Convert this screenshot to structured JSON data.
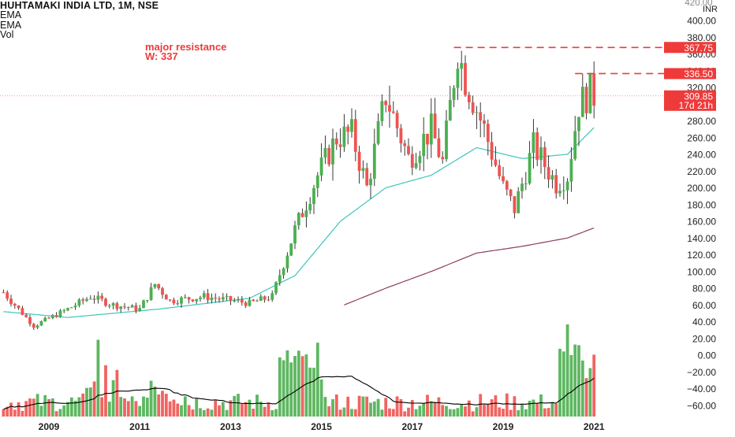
{
  "header": {
    "title": "HUHTAMAKI INDIA LTD, 1M, NSE",
    "indicators": [
      "EMA",
      "EMA",
      "Vol"
    ]
  },
  "annotation": {
    "line1": "major resistance",
    "line2": "W: 337"
  },
  "price_axis": {
    "unit": "INR",
    "top_partial_label": "420.00",
    "labels": [
      "400.00",
      "380.00",
      "360.00",
      "340.00",
      "320.00",
      "300.00",
      "280.00",
      "260.00",
      "240.00",
      "220.00",
      "200.00",
      "180.00",
      "160.00",
      "140.00",
      "120.00",
      "100.00",
      "80.00",
      "60.00",
      "40.00",
      "20.00",
      "0.00",
      "−20.00",
      "−40.00",
      "−60.00"
    ],
    "price_tags": [
      {
        "value": 367.75,
        "label": "367.75",
        "color": "#ef3a3a"
      },
      {
        "value": 336.5,
        "label": "336.50",
        "color": "#ef3a3a"
      },
      {
        "value": 309.85,
        "label": "309.85",
        "color": "#ef3a3a"
      }
    ],
    "countdown": "17d 21h"
  },
  "time_axis": {
    "labels": [
      "2009",
      "2011",
      "2013",
      "2015",
      "2017",
      "2019",
      "2021"
    ]
  },
  "colors": {
    "up": "#4caf50",
    "down": "#ef5350",
    "ema_fast": "#3cc6b8",
    "ema_slow": "#8b3a62",
    "vol_ma": "#000000",
    "resistance": "#ef3a3a",
    "axis_text": "#222222"
  },
  "chart_data": {
    "type": "candlestick",
    "title": "HUHTAMAKI INDIA LTD, 1M, NSE",
    "interval": "1M",
    "x_range": [
      "2008-01",
      "2021-01"
    ],
    "y_range": [
      -60,
      420
    ],
    "resistance_levels": [
      367.75,
      336.5
    ],
    "last_price": 309.85,
    "ohlc_anchors": [
      {
        "date": "2008-01",
        "close": 75
      },
      {
        "date": "2008-09",
        "close": 35
      },
      {
        "date": "2009-06",
        "close": 55
      },
      {
        "date": "2009-12",
        "close": 70
      },
      {
        "date": "2010-06",
        "close": 60
      },
      {
        "date": "2011-01",
        "close": 55
      },
      {
        "date": "2011-05",
        "close": 85
      },
      {
        "date": "2011-09",
        "close": 65
      },
      {
        "date": "2012-06",
        "close": 70
      },
      {
        "date": "2013-06",
        "close": 62
      },
      {
        "date": "2013-12",
        "close": 70
      },
      {
        "date": "2014-06",
        "close": 150
      },
      {
        "date": "2014-12",
        "close": 215
      },
      {
        "date": "2015-05",
        "close": 260
      },
      {
        "date": "2015-09",
        "close": 265
      },
      {
        "date": "2016-01",
        "close": 200
      },
      {
        "date": "2016-06",
        "close": 310
      },
      {
        "date": "2016-12",
        "close": 235
      },
      {
        "date": "2017-06",
        "close": 270
      },
      {
        "date": "2017-09",
        "close": 230
      },
      {
        "date": "2018-01",
        "close": 365
      },
      {
        "date": "2018-03",
        "close": 330
      },
      {
        "date": "2018-08",
        "close": 270
      },
      {
        "date": "2019-01",
        "close": 200
      },
      {
        "date": "2019-04",
        "close": 175
      },
      {
        "date": "2019-09",
        "close": 250
      },
      {
        "date": "2020-03",
        "close": 205
      },
      {
        "date": "2020-06",
        "close": 215
      },
      {
        "date": "2020-09",
        "close": 300
      },
      {
        "date": "2020-12",
        "close": 315
      },
      {
        "date": "2021-01",
        "close": 310
      }
    ],
    "ema_fast_anchors": [
      {
        "date": "2008-01",
        "value": 52
      },
      {
        "date": "2009-06",
        "value": 45
      },
      {
        "date": "2011-06",
        "value": 55
      },
      {
        "date": "2013-06",
        "value": 68
      },
      {
        "date": "2014-06",
        "value": 95
      },
      {
        "date": "2015-06",
        "value": 160
      },
      {
        "date": "2016-06",
        "value": 200
      },
      {
        "date": "2017-06",
        "value": 215
      },
      {
        "date": "2018-06",
        "value": 248
      },
      {
        "date": "2019-06",
        "value": 235
      },
      {
        "date": "2020-06",
        "value": 240
      },
      {
        "date": "2021-01",
        "value": 272
      }
    ],
    "ema_slow_anchors": [
      {
        "date": "2015-07",
        "value": 60
      },
      {
        "date": "2016-06",
        "value": 80
      },
      {
        "date": "2017-06",
        "value": 100
      },
      {
        "date": "2018-06",
        "value": 122
      },
      {
        "date": "2019-06",
        "value": 130
      },
      {
        "date": "2020-06",
        "value": 140
      },
      {
        "date": "2021-01",
        "value": 152
      }
    ],
    "volume_peaks": [
      {
        "date": "2010-02",
        "relative": 0.75
      },
      {
        "date": "2014-03",
        "relative": 0.55
      },
      {
        "date": "2020-06",
        "relative": 0.9
      },
      {
        "date": "2020-07",
        "relative": 0.6
      }
    ]
  }
}
